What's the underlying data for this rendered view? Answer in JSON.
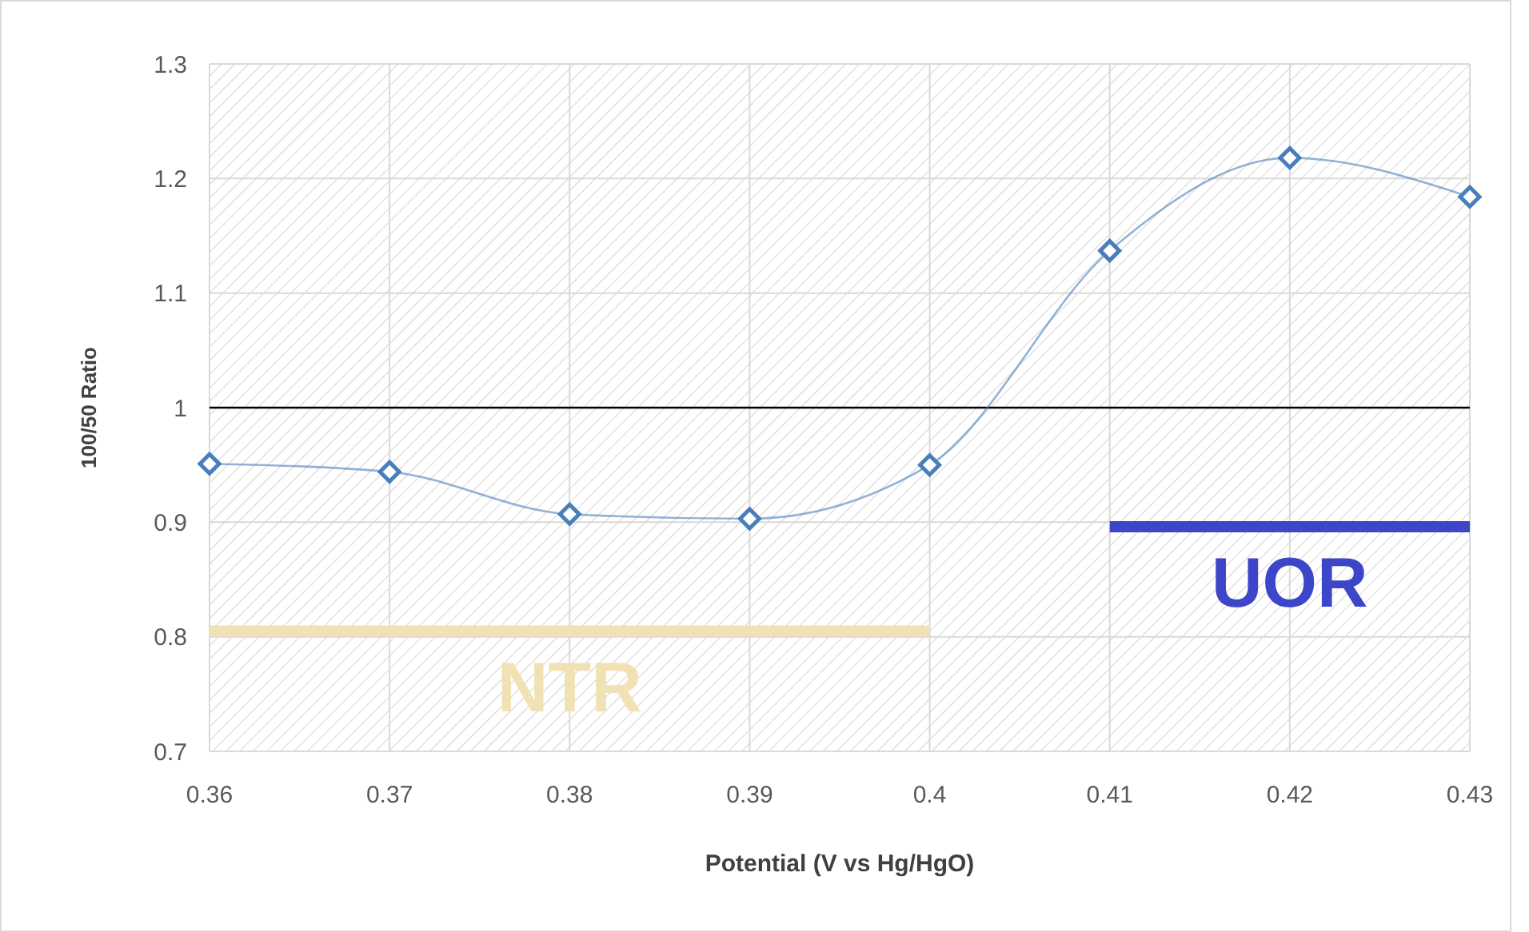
{
  "chart_data": {
    "type": "line",
    "xlabel": "Potential  (V vs Hg/HgO)",
    "ylabel": "100/50 Ratio",
    "x": [
      0.36,
      0.37,
      0.38,
      0.39,
      0.4,
      0.41,
      0.42,
      0.43
    ],
    "series": [
      {
        "color": "#4a7ebb",
        "values": [
          0.951,
          0.944,
          0.907,
          0.903,
          0.95,
          1.137,
          1.218,
          1.184
        ],
        "marker": "diamond"
      },
      {
        "name": "NTR",
        "color": "#f0e2b4",
        "x": [
          0.36,
          0.4
        ],
        "values": [
          0.805,
          0.805
        ],
        "marker": "none"
      },
      {
        "name": "UOR",
        "color": "#3d45c9",
        "x": [
          0.41,
          0.43
        ],
        "values": [
          0.896,
          0.896
        ],
        "marker": "none"
      }
    ],
    "xlim": [
      0.36,
      0.43
    ],
    "xticks": [
      0.36,
      0.37,
      0.38,
      0.39,
      {
        "value": 0.4,
        "label": "0.4"
      },
      0.41,
      0.42,
      0.43
    ],
    "ylim": [
      0.7,
      1.3
    ],
    "yticks": [
      0.7,
      0.8,
      0.9,
      {
        "value": 1,
        "label": "1"
      },
      1.1,
      1.2,
      1.3
    ],
    "grid": true,
    "line_style": "solid",
    "ref_lines": [
      {
        "axis": "y",
        "value": 1,
        "color": "#000000"
      }
    ]
  }
}
